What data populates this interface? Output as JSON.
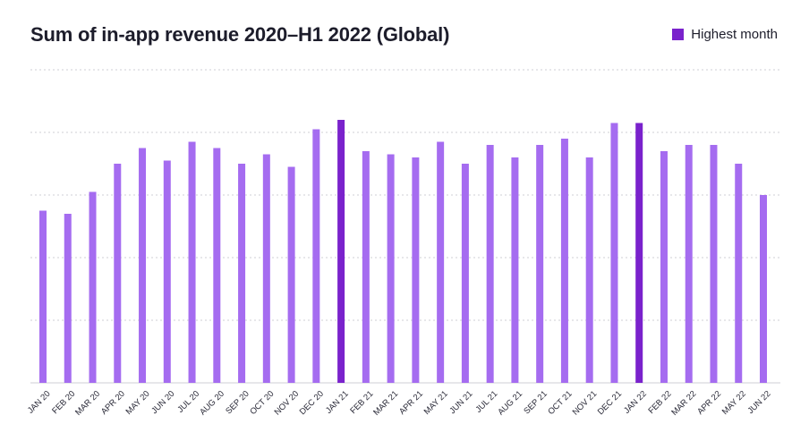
{
  "chart_data": {
    "type": "bar",
    "title": "Sum of in-app revenue 2020–H1 2022 (Global)",
    "xlabel": "",
    "ylabel": "",
    "ylim": [
      0,
      100
    ],
    "grid": true,
    "legend_position": "top-right",
    "legend": [
      {
        "label": "Highest month",
        "color": "#7a22cc"
      }
    ],
    "categories": [
      "JAN 20",
      "FEB 20",
      "MAR 20",
      "APR 20",
      "MAY 20",
      "JUN 20",
      "JUL 20",
      "AUG 20",
      "SEP 20",
      "OCT 20",
      "NOV 20",
      "DEC 20",
      "JAN 21",
      "FEB 21",
      "MAR 21",
      "APR 21",
      "MAY 21",
      "JUN 21",
      "JUL 21",
      "AUG 21",
      "SEP 21",
      "OCT 21",
      "NOV 21",
      "DEC 21",
      "JAN 22",
      "FEB 22",
      "MAR 22",
      "APR 22",
      "MAY 22",
      "JUN 22"
    ],
    "values": [
      55,
      54,
      61,
      70,
      75,
      71,
      77,
      75,
      70,
      73,
      69,
      81,
      84,
      74,
      73,
      72,
      77,
      70,
      76,
      72,
      76,
      78,
      72,
      83,
      83,
      74,
      76,
      76,
      70,
      60
    ],
    "highlight": [
      "JAN 21",
      "JAN 22"
    ],
    "colors": {
      "bar": "#a56cf0",
      "highlight": "#7a22cc",
      "grid": "#cfcfd6",
      "tick_text": "#2a2a38"
    }
  }
}
